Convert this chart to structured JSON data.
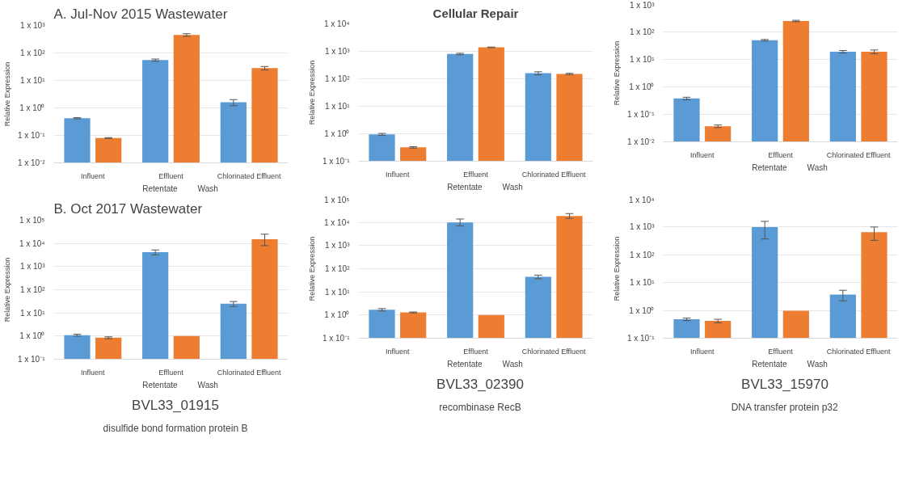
{
  "chart_data": [
    {
      "type": "bar",
      "title": "A. Jul-Nov 2015 Wastewater",
      "ylabel": "Relative Expression",
      "categories": [
        "Influent",
        "Effluent",
        "Chlorinated Effluent"
      ],
      "log": true,
      "ylim": [
        0.01,
        1000
      ],
      "yticks": [
        {
          "value": 0.01,
          "label": "1 x 10⁻²"
        },
        {
          "value": 0.1,
          "label": "1 x 10⁻¹"
        },
        {
          "value": 1,
          "label": "1 x 10⁰"
        },
        {
          "value": 10,
          "label": "1 x 10¹"
        },
        {
          "value": 100,
          "label": "1 x 10²"
        },
        {
          "value": 1000,
          "label": "1 x 10³"
        }
      ],
      "grid": "y",
      "legend": "bottom",
      "tick_labels": "xy",
      "series": [
        {
          "name": "Retentate",
          "color": "#5b9bd5",
          "values": [
            0.42,
            55,
            1.6
          ],
          "errors": [
            0.02,
            5,
            0.4
          ]
        },
        {
          "name": "Wash",
          "color": "#ed7d31",
          "values": [
            0.08,
            450,
            28
          ],
          "errors": [
            0.003,
            50,
            4
          ]
        }
      ]
    },
    {
      "type": "bar",
      "title": "Cellular Repair",
      "ylabel": "Relative Expression",
      "categories": [
        "Influent",
        "Effluent",
        "Chlorinated Effluent"
      ],
      "log": true,
      "ylim": [
        0.1,
        10000
      ],
      "yticks": [
        {
          "value": 0.1,
          "label": "1 x 10⁻¹"
        },
        {
          "value": 1,
          "label": "1 x 10⁰"
        },
        {
          "value": 10,
          "label": "1 x 10¹"
        },
        {
          "value": 100,
          "label": "1 x 10²"
        },
        {
          "value": 1000,
          "label": "1 x 10³"
        },
        {
          "value": 10000,
          "label": "1 x 10⁴"
        }
      ],
      "grid": "y",
      "legend": "bottom",
      "series": [
        {
          "name": "Retentate",
          "color": "#5b9bd5",
          "values": [
            0.95,
            800,
            160
          ],
          "errors": [
            0.08,
            50,
            20
          ]
        },
        {
          "name": "Wash",
          "color": "#ed7d31",
          "values": [
            0.32,
            1400,
            150
          ],
          "errors": [
            0.02,
            30,
            8
          ]
        }
      ]
    },
    {
      "type": "bar",
      "ylabel": "Relative Expression",
      "categories": [
        "Influent",
        "Effluent",
        "Chlorinated Effluent"
      ],
      "log": true,
      "ylim": [
        0.01,
        1000
      ],
      "yticks": [
        {
          "value": 0.01,
          "label": "1 x 10⁻²"
        },
        {
          "value": 0.1,
          "label": "1 x 10⁻¹"
        },
        {
          "value": 1,
          "label": "1 x 10⁰"
        },
        {
          "value": 10,
          "label": "1 x 10¹"
        },
        {
          "value": 100,
          "label": "1 x 10²"
        },
        {
          "value": 1000,
          "label": "1 x 10³"
        }
      ],
      "grid": "y",
      "legend": "bottom",
      "series": [
        {
          "name": "Retentate",
          "color": "#5b9bd5",
          "values": [
            0.38,
            50,
            19
          ],
          "errors": [
            0.04,
            3,
            2
          ]
        },
        {
          "name": "Wash",
          "color": "#ed7d31",
          "values": [
            0.037,
            250,
            19
          ],
          "errors": [
            0.004,
            15,
            3
          ]
        }
      ]
    },
    {
      "type": "bar",
      "title": "B. Oct 2017 Wastewater",
      "ylabel": "Relative Expression",
      "categories": [
        "Influent",
        "Effluent",
        "Chlorinated Effluent"
      ],
      "log": true,
      "ylim": [
        0.1,
        100000
      ],
      "yticks": [
        {
          "value": 0.1,
          "label": "1 x 10⁻¹"
        },
        {
          "value": 1,
          "label": "1 x 10⁰"
        },
        {
          "value": 10,
          "label": "1 x 10¹"
        },
        {
          "value": 100,
          "label": "1 x 10²"
        },
        {
          "value": 1000,
          "label": "1 x 10³"
        },
        {
          "value": 10000,
          "label": "1 x 10⁴"
        },
        {
          "value": 100000,
          "label": "1 x 10⁵"
        }
      ],
      "grid": "y",
      "legend": "bottom",
      "annotations": [
        "BVL33_01915",
        "disulfide bond formation protein B"
      ],
      "series": [
        {
          "name": "Retentate",
          "color": "#5b9bd5",
          "values": [
            1.1,
            4200,
            25
          ],
          "errors": [
            0.1,
            1000,
            6
          ]
        },
        {
          "name": "Wash",
          "color": "#ed7d31",
          "values": [
            0.85,
            1.0,
            15000
          ],
          "errors": [
            0.08,
            null,
            [
              8000,
              25000
            ]
          ]
        }
      ]
    },
    {
      "type": "bar",
      "ylabel": "Relative Expression",
      "categories": [
        "Influent",
        "Effluent",
        "Chlorinated Effluent"
      ],
      "log": true,
      "ylim": [
        0.1,
        100000
      ],
      "yticks": [
        {
          "value": 0.1,
          "label": "1 x 10⁻¹"
        },
        {
          "value": 1,
          "label": "1 x 10⁰"
        },
        {
          "value": 10,
          "label": "1 x 10¹"
        },
        {
          "value": 100,
          "label": "1 x 10²"
        },
        {
          "value": 1000,
          "label": "1 x 10³"
        },
        {
          "value": 10000,
          "label": "1 x 10⁴"
        },
        {
          "value": 100000,
          "label": "1 x 10⁵"
        }
      ],
      "grid": "y",
      "legend": "bottom",
      "annotations": [
        "BVL33_02390",
        "recombinase RecB"
      ],
      "series": [
        {
          "name": "Retentate",
          "color": "#5b9bd5",
          "values": [
            1.7,
            10000,
            45
          ],
          "errors": [
            0.2,
            [
              7000,
              14000
            ],
            8
          ]
        },
        {
          "name": "Wash",
          "color": "#ed7d31",
          "values": [
            1.3,
            1.0,
            19000
          ],
          "errors": [
            0.06,
            null,
            [
              15000,
              24000
            ]
          ]
        }
      ]
    },
    {
      "type": "bar",
      "ylabel": "Relative Expression",
      "categories": [
        "Influent",
        "Effluent",
        "Chlorinated Effluent"
      ],
      "log": true,
      "ylim": [
        0.1,
        10000
      ],
      "yticks": [
        {
          "value": 0.1,
          "label": "1 x 10⁻¹"
        },
        {
          "value": 1,
          "label": "1 x 10⁰"
        },
        {
          "value": 10,
          "label": "1 x 10¹"
        },
        {
          "value": 100,
          "label": "1 x 10²"
        },
        {
          "value": 1000,
          "label": "1 x 10³"
        },
        {
          "value": 10000,
          "label": "1 x 10⁴"
        }
      ],
      "grid": "y",
      "legend": "bottom",
      "annotations": [
        "BVL33_15970",
        "DNA transfer protein p32"
      ],
      "series": [
        {
          "name": "Retentate",
          "color": "#5b9bd5",
          "values": [
            0.48,
            1000,
            3.7
          ],
          "errors": [
            0.05,
            [
              370,
              1600
            ],
            [
              2.2,
              5.3
            ]
          ]
        },
        {
          "name": "Wash",
          "color": "#ed7d31",
          "values": [
            0.42,
            0.97,
            650
          ],
          "errors": [
            0.06,
            null,
            [
              330,
              1000
            ]
          ]
        }
      ]
    }
  ]
}
